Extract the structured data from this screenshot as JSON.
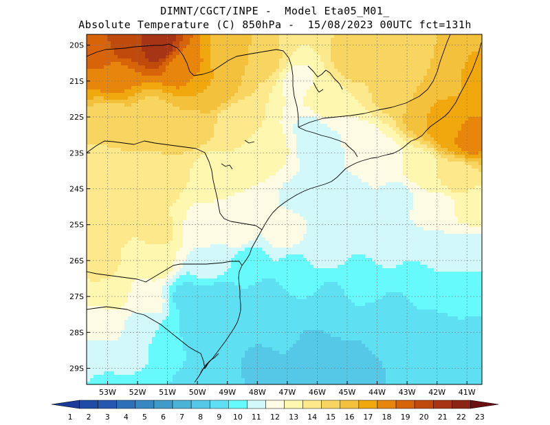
{
  "title": {
    "line1": "DIMNT/CGCT/INPE -  Model Eta05_M01_",
    "line2": "Absolute Temperature (C) 850hPa -  15/08/2023 00UTC fct=131h"
  },
  "axes": {
    "lat_labels": [
      "20S",
      "21S",
      "22S",
      "23S",
      "24S",
      "25S",
      "26S",
      "27S",
      "28S",
      "29S"
    ],
    "lon_labels": [
      "53W",
      "52W",
      "51W",
      "50W",
      "49W",
      "48W",
      "47W",
      "46W",
      "45W",
      "44W",
      "43W",
      "42W",
      "41W"
    ]
  },
  "colorbar": {
    "labels": [
      "1",
      "2",
      "3",
      "4",
      "5",
      "6",
      "7",
      "8",
      "9",
      "10",
      "11",
      "12",
      "13",
      "14",
      "15",
      "16",
      "17",
      "18",
      "19",
      "20",
      "21",
      "22",
      "23"
    ],
    "colors": [
      "#1a3c96",
      "#1f4aa6",
      "#2657b0",
      "#2e6fba",
      "#3787c2",
      "#3f9cca",
      "#4bb4d6",
      "#54c8e6",
      "#5ee0f2",
      "#66fafc",
      "#d2f8fa",
      "#fefbe4",
      "#fef7b0",
      "#fde88c",
      "#f8d460",
      "#f4c13c",
      "#f0a80e",
      "#e8860c",
      "#d8640a",
      "#c04a0c",
      "#a83416",
      "#8a2414",
      "#6a0e12"
    ]
  },
  "field": {
    "lon_min": -53.7,
    "lon_max": -40.5,
    "lat_min": -29.45,
    "lat_max": -19.7,
    "controls": [
      [
        -20.0,
        -52.5,
        20.5
      ],
      [
        -20.0,
        -51.3,
        21.5
      ],
      [
        -20.3,
        -53.2,
        19.2
      ],
      [
        -20.9,
        -52.8,
        18.3
      ],
      [
        -20.6,
        -50.5,
        18.6
      ],
      [
        -21.2,
        -49.6,
        17.0
      ],
      [
        -20.3,
        -48.9,
        16.6
      ],
      [
        -20.5,
        -47.7,
        15.2
      ],
      [
        -21.0,
        -46.7,
        12.8
      ],
      [
        -20.4,
        -44.8,
        15.3
      ],
      [
        -20.3,
        -42.8,
        15.5
      ],
      [
        -20.6,
        -41.6,
        16.5
      ],
      [
        -20.8,
        -40.8,
        17.2
      ],
      [
        -21.4,
        -43.5,
        15.2
      ],
      [
        -21.9,
        -42.4,
        17.0
      ],
      [
        -22.3,
        -41.6,
        17.8
      ],
      [
        -22.6,
        -40.9,
        18.4
      ],
      [
        -21.6,
        -45.8,
        13.5
      ],
      [
        -22.3,
        -46.2,
        11.8
      ],
      [
        -22.9,
        -45.8,
        11.3
      ],
      [
        -22.7,
        -44.5,
        12.7
      ],
      [
        -23.2,
        -43.8,
        12.4
      ],
      [
        -23.4,
        -42.6,
        13.5
      ],
      [
        -23.7,
        -41.3,
        14.5
      ],
      [
        -22.1,
        -52.9,
        15.3
      ],
      [
        -22.0,
        -51.5,
        15.6
      ],
      [
        -22.3,
        -50.2,
        15.8
      ],
      [
        -22.2,
        -48.7,
        14.4
      ],
      [
        -22.9,
        -47.8,
        13.8
      ],
      [
        -23.6,
        -53.2,
        14.4
      ],
      [
        -23.7,
        -51.5,
        14.8
      ],
      [
        -23.4,
        -49.6,
        13.9
      ],
      [
        -23.8,
        -48.5,
        13.0
      ],
      [
        -24.2,
        -46.7,
        11.9
      ],
      [
        -24.4,
        -45.1,
        11.2
      ],
      [
        -24.2,
        -43.3,
        11.8
      ],
      [
        -24.5,
        -41.8,
        12.8
      ],
      [
        -24.5,
        -40.8,
        13.5
      ],
      [
        -25.0,
        -53.1,
        14.5
      ],
      [
        -25.2,
        -51.3,
        14.2
      ],
      [
        -25.1,
        -49.8,
        12.7
      ],
      [
        -25.3,
        -48.6,
        12.3
      ],
      [
        -25.2,
        -47.1,
        12.4
      ],
      [
        -25.6,
        -45.6,
        11.5
      ],
      [
        -25.5,
        -43.7,
        11.4
      ],
      [
        -25.8,
        -42.0,
        11.4
      ],
      [
        -25.7,
        -40.9,
        11.8
      ],
      [
        -26.2,
        -53.2,
        14.2
      ],
      [
        -26.1,
        -51.4,
        13.4
      ],
      [
        -26.1,
        -49.6,
        11.4
      ],
      [
        -26.0,
        -48.3,
        10.6
      ],
      [
        -26.2,
        -46.8,
        10.9
      ],
      [
        -26.4,
        -44.6,
        10.8
      ],
      [
        -26.6,
        -42.5,
        10.5
      ],
      [
        -26.8,
        -41.0,
        10.6
      ],
      [
        -26.9,
        -52.9,
        13.5
      ],
      [
        -27.1,
        -51.6,
        12.5
      ],
      [
        -27.0,
        -50.4,
        9.8
      ],
      [
        -27.1,
        -49.3,
        9.2
      ],
      [
        -27.0,
        -47.6,
        9.6
      ],
      [
        -27.0,
        -45.5,
        9.9
      ],
      [
        -27.3,
        -43.3,
        9.9
      ],
      [
        -27.4,
        -41.4,
        10.0
      ],
      [
        -27.7,
        -53.2,
        12.8
      ],
      [
        -27.9,
        -51.8,
        11.5
      ],
      [
        -28.2,
        -51.0,
        10.4
      ],
      [
        -28.0,
        -50.1,
        9.4
      ],
      [
        -28.0,
        -48.8,
        9.1
      ],
      [
        -28.0,
        -47.2,
        9.3
      ],
      [
        -28.0,
        -45.7,
        9.0
      ],
      [
        -28.0,
        -43.9,
        9.2
      ],
      [
        -28.2,
        -42.3,
        9.4
      ],
      [
        -28.3,
        -40.8,
        9.6
      ],
      [
        -28.7,
        -53.3,
        11.7
      ],
      [
        -28.8,
        -52.1,
        11.2
      ],
      [
        -28.8,
        -50.9,
        10.2
      ],
      [
        -28.9,
        -49.5,
        9.2
      ],
      [
        -28.9,
        -47.8,
        8.8
      ],
      [
        -28.6,
        -46.2,
        8.5
      ],
      [
        -28.8,
        -44.7,
        8.8
      ],
      [
        -29.0,
        -43.1,
        9.0
      ],
      [
        -29.1,
        -41.5,
        9.5
      ],
      [
        -29.4,
        -53.1,
        10.9
      ],
      [
        -29.4,
        -51.7,
        10.4
      ],
      [
        -29.3,
        -50.2,
        9.5
      ],
      [
        -29.3,
        -47.0,
        8.8
      ],
      [
        -29.4,
        -44.5,
        8.9
      ],
      [
        -29.3,
        -42.0,
        9.6
      ],
      [
        -29.4,
        -40.8,
        9.9
      ]
    ]
  }
}
